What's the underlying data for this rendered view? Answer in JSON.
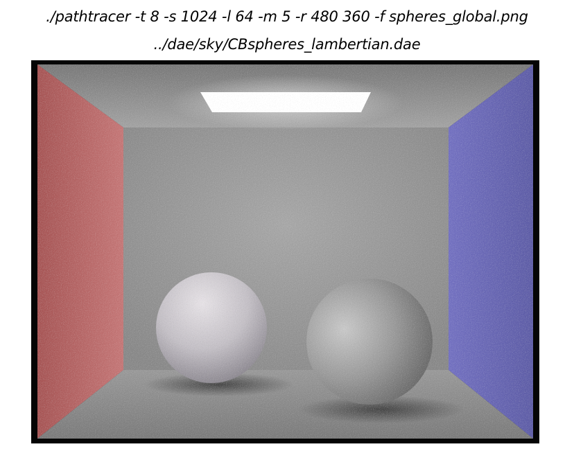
{
  "caption": {
    "command_line": "./pathtracer -t 8 -s 1024 -l 64 -m 5 -r 480 360 -f spheres_global.png",
    "scene_path": "../dae/sky/CBspheres_lambertian.dae"
  },
  "render": {
    "scene": "cornell-box-two-spheres",
    "colors": {
      "left_wall": "#b46060",
      "right_wall": "#6a68b4",
      "back_wall": "#9a9a9a",
      "ceiling": "#8c8c8c",
      "floor": "#8e8e8e",
      "light": "#ffffff",
      "frame": "#050505"
    }
  }
}
